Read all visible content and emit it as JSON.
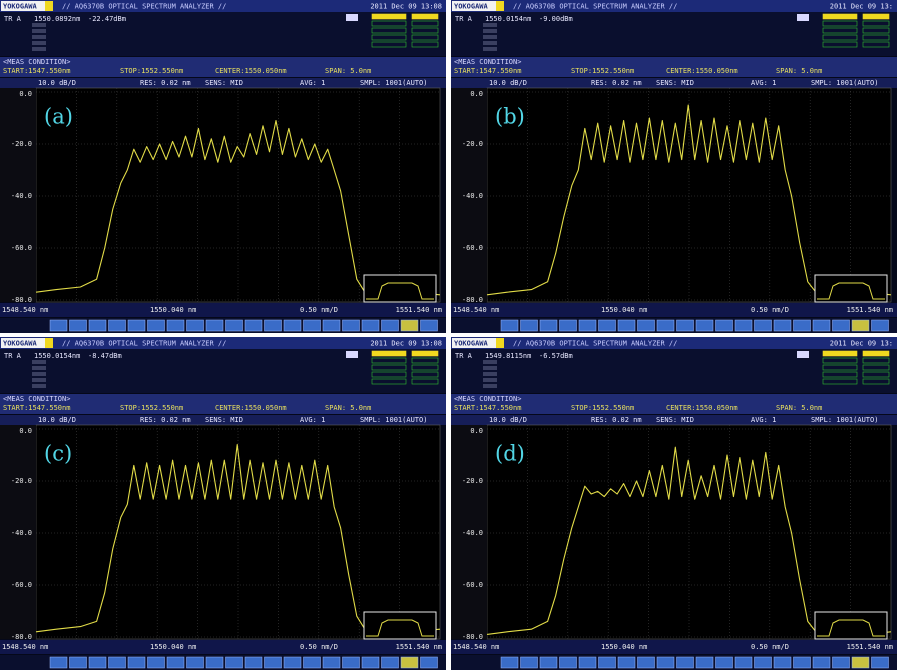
{
  "chart_data": [
    {
      "type": "line",
      "label": "(a)",
      "brand": "YOKOGAWA",
      "title": "// AQ6370B OPTICAL SPECTRUM ANALYZER //",
      "date": "2011 Dec 09 13:08",
      "trace": "TR A",
      "marker_wavelength": "1550.0892nm",
      "marker_level": "-22.47dBm",
      "condition": "<MEAS CONDITION>",
      "start": "START:1547.550nm",
      "stop": "STOP:1552.550nm",
      "center": "CENTER:1550.050nm",
      "span": "SPAN: 5.0nm",
      "scale": "10.0 dB/D",
      "res": "RES: 0.02 nm",
      "sens": "SENS: MID",
      "avg": "AVG: 1",
      "smpl": "SMPL: 1001(AUTO)",
      "bottom_labels": [
        "1548.540 nm",
        "1550.040 nm",
        "0.50 nm/D",
        "1551.540 nm"
      ],
      "color": "#e2dc48",
      "grid": true,
      "xlim": [
        1547.55,
        1552.55
      ],
      "ylim": [
        -80,
        0
      ],
      "yticks": [
        {
          "value": 0,
          "label": "0.0"
        },
        {
          "value": -20,
          "label": "-20.0"
        },
        {
          "value": -40,
          "label": "-40.0"
        },
        {
          "value": -60,
          "label": "-60.0"
        },
        {
          "value": -80,
          "label": "-80.0"
        }
      ],
      "x": [
        1547.55,
        1547.8,
        1548.1,
        1548.3,
        1548.4,
        1548.5,
        1548.6,
        1548.68,
        1548.76,
        1548.84,
        1548.92,
        1549.0,
        1549.08,
        1549.16,
        1549.24,
        1549.32,
        1549.4,
        1549.48,
        1549.56,
        1549.64,
        1549.72,
        1549.8,
        1549.88,
        1549.96,
        1550.04,
        1550.12,
        1550.2,
        1550.28,
        1550.36,
        1550.44,
        1550.52,
        1550.6,
        1550.68,
        1550.76,
        1550.84,
        1550.92,
        1551.0,
        1551.08,
        1551.16,
        1551.24,
        1551.32,
        1551.42,
        1551.52,
        1551.62,
        1551.9,
        1552.2,
        1552.55
      ],
      "values": [
        -77,
        -76,
        -75,
        -72,
        -60,
        -45,
        -35,
        -30,
        -22,
        -27,
        -21,
        -26,
        -20,
        -26,
        -19,
        -25,
        -17,
        -25,
        -14,
        -26,
        -18,
        -27,
        -17,
        -27,
        -21,
        -25,
        -16,
        -24,
        -13,
        -23,
        -11,
        -24,
        -14,
        -25,
        -18,
        -26,
        -20,
        -27,
        -22,
        -30,
        -38,
        -55,
        -72,
        -77,
        -78,
        -77,
        -78
      ]
    },
    {
      "type": "line",
      "label": "(b)",
      "brand": "YOKOGAWA",
      "title": "// AQ6370B OPTICAL SPECTRUM ANALYZER //",
      "date": "2011 Dec 09 13:",
      "trace": "TR A",
      "marker_wavelength": "1550.0154nm",
      "marker_level": "-9.00dBm",
      "condition": "<MEAS CONDITION>",
      "start": "START:1547.550nm",
      "stop": "STOP:1552.550nm",
      "center": "CENTER:1550.050nm",
      "span": "SPAN: 5.0nm",
      "scale": "10.0 dB/D",
      "res": "RES: 0.02 nm",
      "sens": "SENS: MID",
      "avg": "AVG: 1",
      "smpl": "SMPL: 1001(AUTO)",
      "bottom_labels": [
        "1548.540 nm",
        "1550.040 nm",
        "0.50 nm/D",
        "1551.540 nm"
      ],
      "color": "#e2dc48",
      "grid": true,
      "xlim": [
        1547.55,
        1552.55
      ],
      "ylim": [
        -80,
        0
      ],
      "yticks": [
        {
          "value": 0,
          "label": "0.0"
        },
        {
          "value": -20,
          "label": "-20.0"
        },
        {
          "value": -40,
          "label": "-40.0"
        },
        {
          "value": -60,
          "label": "-60.0"
        },
        {
          "value": -80,
          "label": "-80.0"
        }
      ],
      "x": [
        1547.55,
        1547.8,
        1548.1,
        1548.3,
        1548.4,
        1548.5,
        1548.6,
        1548.68,
        1548.76,
        1548.84,
        1548.92,
        1549.0,
        1549.08,
        1549.16,
        1549.24,
        1549.32,
        1549.4,
        1549.48,
        1549.56,
        1549.64,
        1549.72,
        1549.8,
        1549.88,
        1549.96,
        1550.04,
        1550.12,
        1550.2,
        1550.28,
        1550.36,
        1550.44,
        1550.52,
        1550.6,
        1550.68,
        1550.76,
        1550.84,
        1550.92,
        1551.0,
        1551.08,
        1551.16,
        1551.24,
        1551.32,
        1551.42,
        1551.52,
        1551.62,
        1551.9,
        1552.2,
        1552.55
      ],
      "values": [
        -78,
        -77,
        -76,
        -73,
        -62,
        -48,
        -36,
        -30,
        -14,
        -26,
        -12,
        -27,
        -13,
        -26,
        -11,
        -27,
        -12,
        -26,
        -10,
        -26,
        -11,
        -27,
        -12,
        -26,
        -5,
        -26,
        -11,
        -27,
        -10,
        -26,
        -13,
        -27,
        -11,
        -26,
        -12,
        -27,
        -10,
        -26,
        -13,
        -30,
        -40,
        -58,
        -73,
        -77,
        -78,
        -77,
        -78
      ]
    },
    {
      "type": "line",
      "label": "(c)",
      "brand": "YOKOGAWA",
      "title": "// AQ6370B OPTICAL SPECTRUM ANALYZER //",
      "date": "2011 Dec 09 13:08",
      "trace": "TR A",
      "marker_wavelength": "1550.0154nm",
      "marker_level": "-8.47dBm",
      "condition": "<MEAS CONDITION>",
      "start": "START:1547.550nm",
      "stop": "STOP:1552.550nm",
      "center": "CENTER:1550.050nm",
      "span": "SPAN: 5.0nm",
      "scale": "10.0 dB/D",
      "res": "RES: 0.02 nm",
      "sens": "SENS: MID",
      "avg": "AVG: 1",
      "smpl": "SMPL: 1001(AUTO)",
      "bottom_labels": [
        "1548.540 nm",
        "1550.040 nm",
        "0.50 nm/D",
        "1551.540 nm"
      ],
      "color": "#e2dc48",
      "grid": true,
      "xlim": [
        1547.55,
        1552.55
      ],
      "ylim": [
        -80,
        0
      ],
      "yticks": [
        {
          "value": 0,
          "label": "0.0"
        },
        {
          "value": -20,
          "label": "-20.0"
        },
        {
          "value": -40,
          "label": "-40.0"
        },
        {
          "value": -60,
          "label": "-60.0"
        },
        {
          "value": -80,
          "label": "-80.0"
        }
      ],
      "x": [
        1547.55,
        1547.8,
        1548.1,
        1548.3,
        1548.4,
        1548.5,
        1548.6,
        1548.68,
        1548.76,
        1548.84,
        1548.92,
        1549.0,
        1549.08,
        1549.16,
        1549.24,
        1549.32,
        1549.4,
        1549.48,
        1549.56,
        1549.64,
        1549.72,
        1549.8,
        1549.88,
        1549.96,
        1550.04,
        1550.12,
        1550.2,
        1550.28,
        1550.36,
        1550.44,
        1550.52,
        1550.6,
        1550.68,
        1550.76,
        1550.84,
        1550.92,
        1551.0,
        1551.08,
        1551.16,
        1551.24,
        1551.32,
        1551.42,
        1551.52,
        1551.62,
        1551.9,
        1552.2,
        1552.55
      ],
      "values": [
        -78,
        -77,
        -76,
        -74,
        -63,
        -46,
        -34,
        -29,
        -14,
        -27,
        -13,
        -27,
        -14,
        -27,
        -12,
        -27,
        -14,
        -27,
        -13,
        -27,
        -12,
        -27,
        -12,
        -27,
        -6,
        -27,
        -12,
        -27,
        -13,
        -27,
        -12,
        -27,
        -13,
        -27,
        -14,
        -27,
        -12,
        -27,
        -14,
        -30,
        -38,
        -56,
        -72,
        -77,
        -78,
        -78,
        -77
      ]
    },
    {
      "type": "line",
      "label": "(d)",
      "brand": "YOKOGAWA",
      "title": "// AQ6370B OPTICAL SPECTRUM ANALYZER //",
      "date": "2011 Dec 09 13:",
      "trace": "TR A",
      "marker_wavelength": "1549.8115nm",
      "marker_level": "-6.57dBm",
      "condition": "<MEAS CONDITION>",
      "start": "START:1547.550nm",
      "stop": "STOP:1552.550nm",
      "center": "CENTER:1550.050nm",
      "span": "SPAN: 5.0nm",
      "scale": "10.0 dB/D",
      "res": "RES: 0.02 nm",
      "sens": "SENS: MID",
      "avg": "AVG: 1",
      "smpl": "SMPL: 1001(AUTO)",
      "bottom_labels": [
        "1548.540 nm",
        "1550.040 nm",
        "0.50 nm/D",
        "1551.540 nm"
      ],
      "color": "#e2dc48",
      "grid": true,
      "xlim": [
        1547.55,
        1552.55
      ],
      "ylim": [
        -80,
        0
      ],
      "yticks": [
        {
          "value": 0,
          "label": "0.0"
        },
        {
          "value": -20,
          "label": "-20.0"
        },
        {
          "value": -40,
          "label": "-40.0"
        },
        {
          "value": -60,
          "label": "-60.0"
        },
        {
          "value": -80,
          "label": "-80.0"
        }
      ],
      "x": [
        1547.55,
        1547.8,
        1548.1,
        1548.3,
        1548.4,
        1548.5,
        1548.6,
        1548.68,
        1548.76,
        1548.84,
        1548.92,
        1549.0,
        1549.08,
        1549.16,
        1549.24,
        1549.32,
        1549.4,
        1549.48,
        1549.56,
        1549.64,
        1549.72,
        1549.8,
        1549.88,
        1549.96,
        1550.04,
        1550.12,
        1550.2,
        1550.28,
        1550.36,
        1550.44,
        1550.52,
        1550.6,
        1550.68,
        1550.76,
        1550.84,
        1550.92,
        1551.0,
        1551.08,
        1551.16,
        1551.24,
        1551.32,
        1551.42,
        1551.52,
        1551.62,
        1551.9,
        1552.2,
        1552.55
      ],
      "values": [
        -79,
        -78,
        -77,
        -74,
        -64,
        -50,
        -38,
        -30,
        -22,
        -25,
        -24,
        -26,
        -23,
        -25,
        -21,
        -26,
        -20,
        -26,
        -16,
        -26,
        -14,
        -27,
        -7,
        -26,
        -12,
        -27,
        -18,
        -26,
        -14,
        -27,
        -10,
        -26,
        -11,
        -27,
        -12,
        -26,
        -9,
        -27,
        -14,
        -30,
        -40,
        -58,
        -74,
        -78,
        -78,
        -79,
        -78
      ]
    }
  ]
}
